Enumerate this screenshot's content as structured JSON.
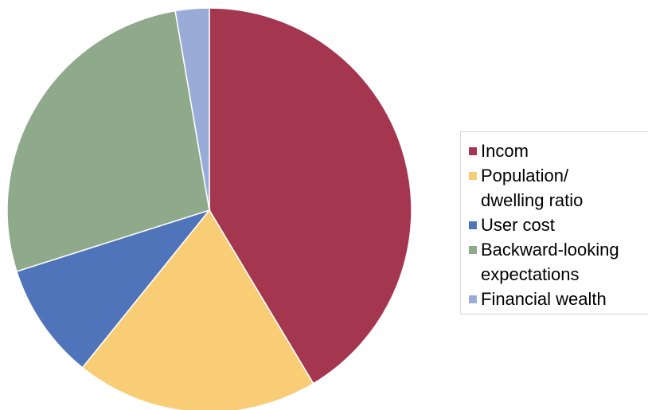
{
  "chart_data": {
    "type": "pie",
    "title": "",
    "start_angle_deg": 0,
    "direction": "clockwise",
    "slices": [
      {
        "label": "Incom",
        "value": 41.4,
        "color": "#a4374f"
      },
      {
        "label": "Population/\ndwelling ratio",
        "value": 19.4,
        "color": "#f8cd76"
      },
      {
        "label": "User cost",
        "value": 9.3,
        "color": "#5074b9"
      },
      {
        "label": "Backward-looking\nexpectations",
        "value": 27.2,
        "color": "#8fa98b"
      },
      {
        "label": "Financial wealth",
        "value": 2.7,
        "color": "#99acd8"
      }
    ],
    "legend_position": "right"
  }
}
